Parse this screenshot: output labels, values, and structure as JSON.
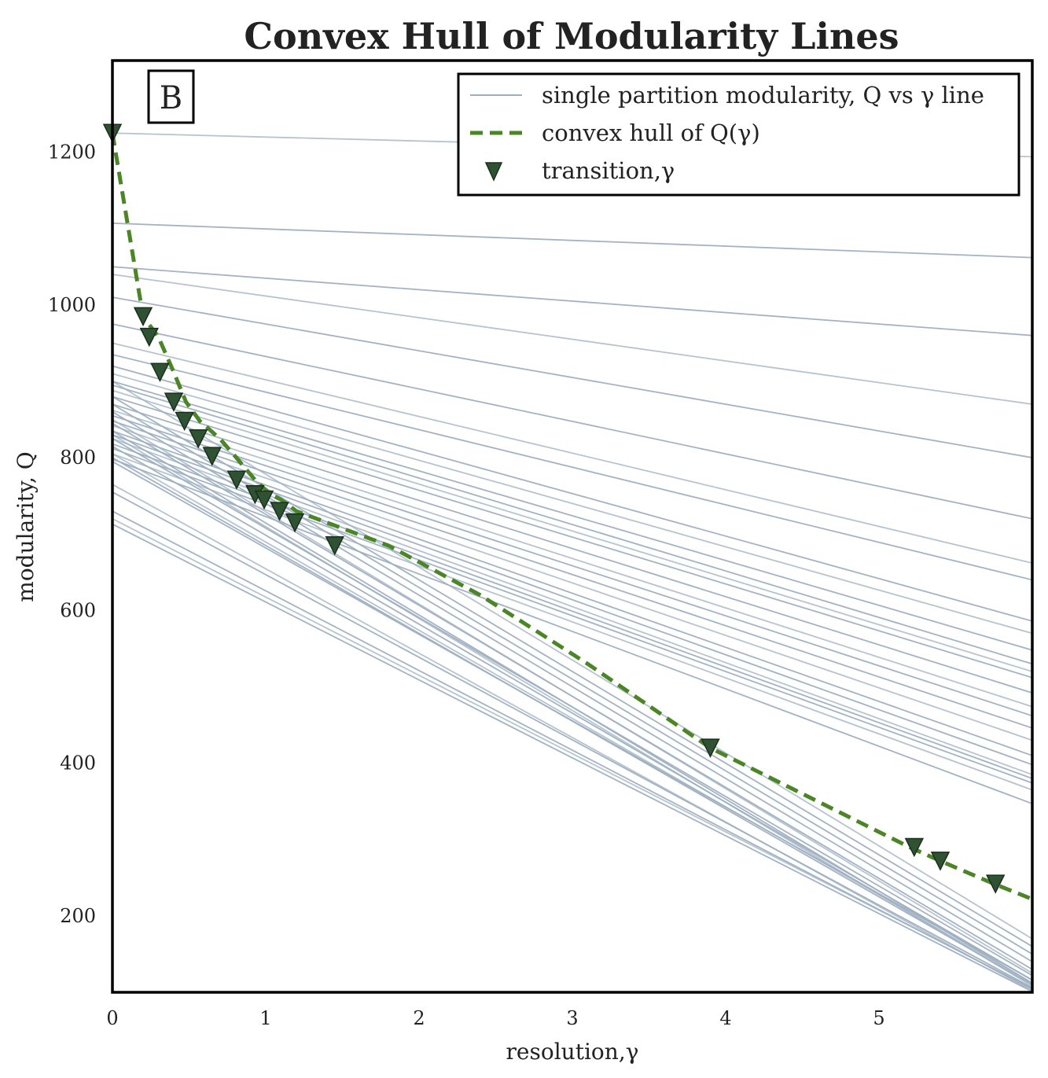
{
  "chart_data": {
    "type": "line",
    "title": "Convex Hull of Modularity Lines",
    "panel_label": "B",
    "xlabel": "resolution,γ",
    "ylabel": "modularity, Q",
    "xlim": [
      0,
      6
    ],
    "ylim": [
      100,
      1320
    ],
    "xticks": [
      0,
      1,
      2,
      3,
      4,
      5
    ],
    "yticks": [
      200,
      400,
      600,
      800,
      1000,
      1200
    ],
    "grid": false,
    "legend_position": "top-right",
    "legend": [
      "single partition modularity, Q vs γ line",
      "convex hull of Q(γ)",
      "transition,γ"
    ],
    "colors": {
      "partition_lines": "#9eafc0",
      "hull": "#4a8526",
      "markers": "#2f5232"
    },
    "partition_lines": [
      [
        1225,
        1194
      ],
      [
        1107,
        1062
      ],
      [
        1050,
        960
      ],
      [
        1040,
        870
      ],
      [
        1010,
        800
      ],
      [
        975,
        720
      ],
      [
        950,
        662
      ],
      [
        935,
        640
      ],
      [
        920,
        586
      ],
      [
        910,
        570
      ],
      [
        900,
        548
      ],
      [
        895,
        530
      ],
      [
        888,
        520
      ],
      [
        880,
        512
      ],
      [
        870,
        492
      ],
      [
        862,
        474
      ],
      [
        855,
        462
      ],
      [
        848,
        446
      ],
      [
        842,
        430
      ],
      [
        835,
        410
      ],
      [
        830,
        398
      ],
      [
        825,
        385
      ],
      [
        818,
        380
      ],
      [
        812,
        374
      ],
      [
        805,
        365
      ],
      [
        798,
        347
      ],
      [
        880,
        160
      ],
      [
        900,
        170
      ],
      [
        870,
        150
      ],
      [
        860,
        140
      ],
      [
        850,
        125
      ],
      [
        845,
        130
      ],
      [
        835,
        112
      ],
      [
        830,
        108
      ],
      [
        825,
        122
      ],
      [
        815,
        116
      ],
      [
        805,
        112
      ],
      [
        800,
        110
      ],
      [
        795,
        116
      ],
      [
        765,
        102
      ],
      [
        755,
        106
      ],
      [
        730,
        104
      ],
      [
        720,
        105
      ],
      [
        713,
        101
      ]
    ],
    "hull": [
      [
        0,
        1225
      ],
      [
        0.2,
        985
      ],
      [
        0.3,
        958
      ],
      [
        0.4,
        912
      ],
      [
        0.48,
        873
      ],
      [
        0.57,
        848
      ],
      [
        0.7,
        825
      ],
      [
        0.8,
        802
      ],
      [
        0.93,
        771
      ],
      [
        1.03,
        752
      ],
      [
        1.1,
        745
      ],
      [
        1.2,
        730
      ],
      [
        1.4,
        715
      ],
      [
        1.8,
        685
      ],
      [
        2.4,
        620
      ],
      [
        3.1,
        530
      ],
      [
        3.9,
        420
      ],
      [
        4.4,
        370
      ],
      [
        5.2,
        290
      ],
      [
        5.4,
        272
      ],
      [
        5.75,
        242
      ],
      [
        6,
        222
      ]
    ],
    "transitions": [
      [
        0,
        1225
      ],
      [
        0.2,
        985
      ],
      [
        0.24,
        958
      ],
      [
        0.31,
        912
      ],
      [
        0.4,
        873
      ],
      [
        0.47,
        848
      ],
      [
        0.56,
        825
      ],
      [
        0.65,
        802
      ],
      [
        0.81,
        771
      ],
      [
        0.93,
        752
      ],
      [
        0.99,
        745
      ],
      [
        1.09,
        730
      ],
      [
        1.19,
        715
      ],
      [
        1.45,
        685
      ],
      [
        3.9,
        420
      ],
      [
        5.23,
        290
      ],
      [
        5.4,
        272
      ],
      [
        5.76,
        242
      ]
    ]
  }
}
